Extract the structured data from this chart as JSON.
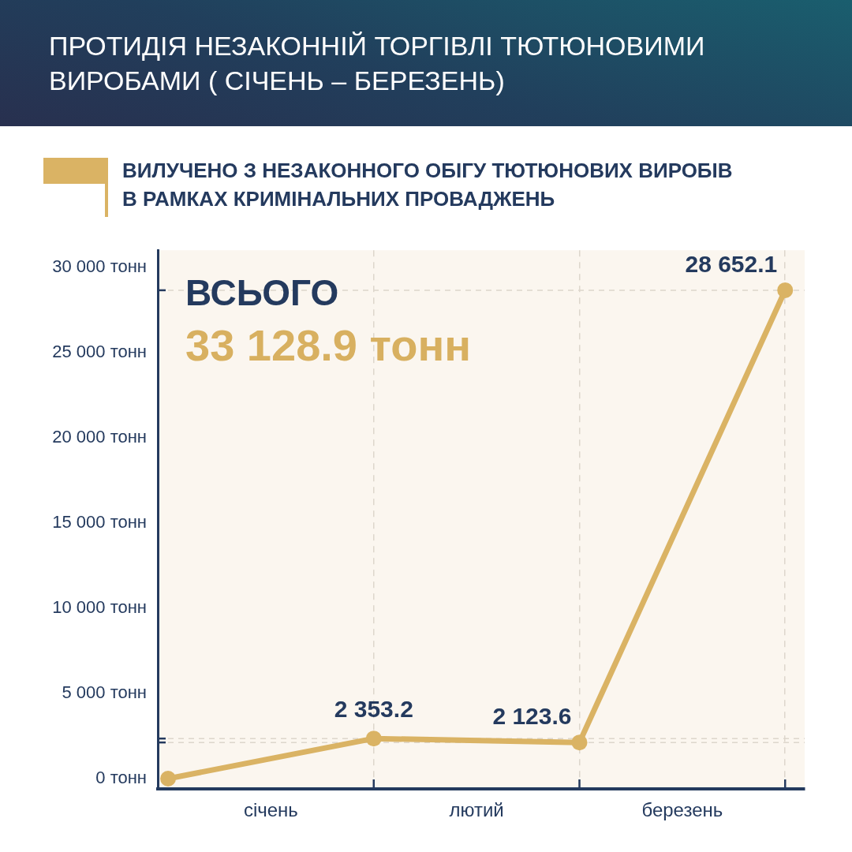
{
  "chart_data": {
    "type": "line",
    "title": "ПРОТИДІЯ НЕЗАКОННІЙ ТОРГІВЛІ ТЮТЮНОВИМИ ВИРОБАМИ ( СІЧЕНЬ – БЕРЕЗЕНЬ)",
    "subtitle": "ВИЛУЧЕНО З НЕЗАКОННОГО ОБІГУ ТЮТЮНОВИХ ВИРОБІВ В РАМКАХ КРИМІНАЛЬНИХ ПРОВАДЖЕНЬ",
    "annotations": [
      "ВСЬОГО",
      "33 128.9 тонн"
    ],
    "categories": [
      null,
      "січень",
      null,
      "лютий",
      null,
      "березень",
      null
    ],
    "values": [
      0,
      null,
      2353.2,
      null,
      2123.6,
      null,
      28652.1
    ],
    "color": "#dab364",
    "value_labels": [
      null,
      null,
      "2 353.2",
      null,
      "2 123.6",
      null,
      "28 652.1"
    ],
    "ylim": [
      -600,
      31000
    ],
    "yticks": [
      {
        "value": 0,
        "label": "0 тонн"
      },
      {
        "value": 5000,
        "label": "5 000 тонн"
      },
      {
        "value": 10000,
        "label": "10 000 тонн"
      },
      {
        "value": 15000,
        "label": "15 000 тонн"
      },
      {
        "value": 20000,
        "label": "20 000 тонн"
      },
      {
        "value": 25000,
        "label": "25 000 тонн"
      },
      {
        "value": 30000,
        "label": "30 000 тонн"
      }
    ],
    "ref_lines": [
      {
        "axis": "y",
        "value": 2353.2,
        "color": "#ddd6cc",
        "line_style": "dashed"
      },
      {
        "axis": "y",
        "value": 2123.6,
        "color": "#ddd6cc",
        "line_style": "dashed"
      },
      {
        "axis": "y",
        "value": 28652.1,
        "color": "#ddd6cc",
        "line_style": "dashed"
      }
    ],
    "grid": "x",
    "marker": "circle",
    "line_style": "solid"
  }
}
